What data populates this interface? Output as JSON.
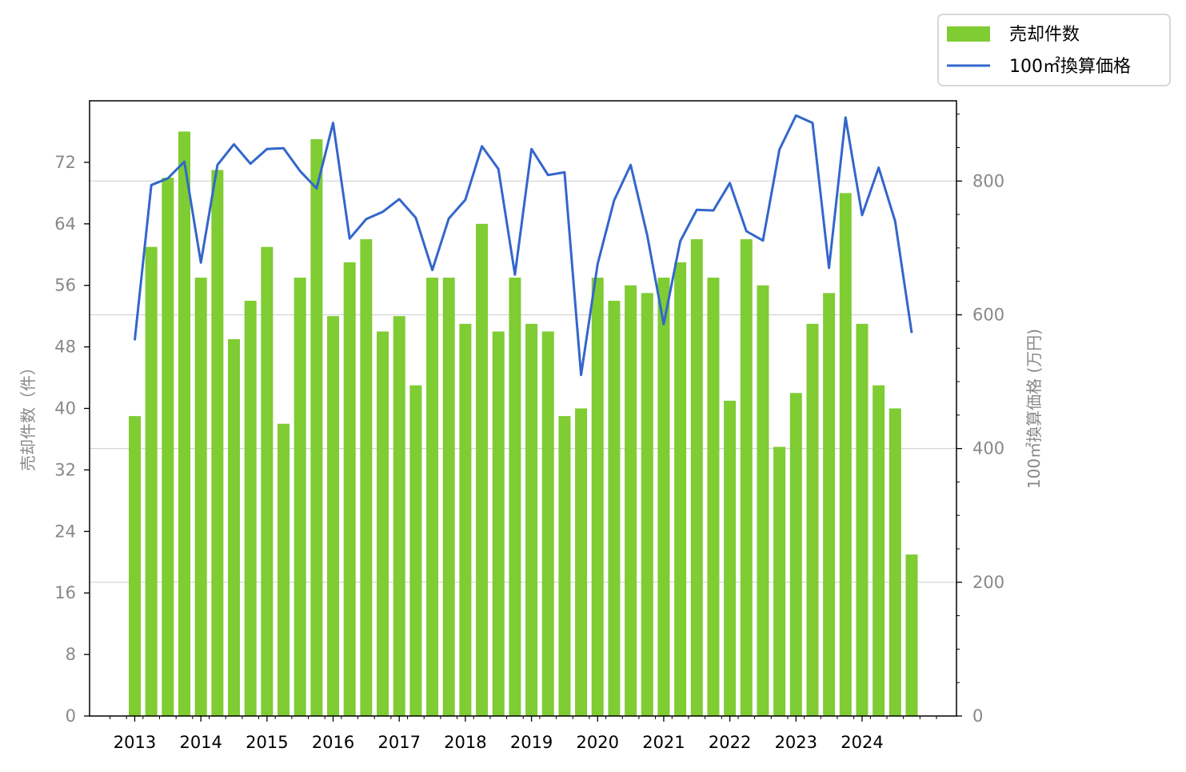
{
  "colors": {
    "bar": "#7fcc33",
    "line": "#3366cc",
    "grid": "#d3d3d3",
    "axis": "#000000",
    "tick_label": "#888888"
  },
  "chart_data": {
    "type": "bar+line",
    "title": "",
    "x": [
      "2013Q1",
      "2013Q2",
      "2013Q3",
      "2013Q4",
      "2014Q1",
      "2014Q2",
      "2014Q3",
      "2014Q4",
      "2015Q1",
      "2015Q2",
      "2015Q3",
      "2015Q4",
      "2016Q1",
      "2016Q2",
      "2016Q3",
      "2016Q4",
      "2017Q1",
      "2017Q2",
      "2017Q3",
      "2017Q4",
      "2018Q1",
      "2018Q2",
      "2018Q3",
      "2018Q4",
      "2019Q1",
      "2019Q2",
      "2019Q3",
      "2019Q4",
      "2020Q1",
      "2020Q2",
      "2020Q3",
      "2020Q4",
      "2021Q1",
      "2021Q2",
      "2021Q3",
      "2021Q4",
      "2022Q1",
      "2022Q2",
      "2022Q3",
      "2022Q4",
      "2023Q1",
      "2023Q2",
      "2023Q3",
      "2023Q4",
      "2024Q1",
      "2024Q2",
      "2024Q3",
      "2024Q4"
    ],
    "year_labels": [
      "2013",
      "2014",
      "2015",
      "2016",
      "2017",
      "2018",
      "2019",
      "2020",
      "2021",
      "2022",
      "2023",
      "2024"
    ],
    "series": [
      {
        "name": "売却件数",
        "type": "bar",
        "axis": "left",
        "values": [
          39,
          61,
          70,
          76,
          57,
          71,
          49,
          54,
          61,
          38,
          57,
          75,
          52,
          59,
          62,
          50,
          52,
          43,
          57,
          57,
          51,
          64,
          50,
          57,
          51,
          50,
          39,
          40,
          57,
          54,
          56,
          55,
          57,
          59,
          62,
          57,
          41,
          62,
          56,
          35,
          42,
          51,
          55,
          68,
          51,
          43,
          40,
          21
        ]
      },
      {
        "name": "100㎡換算価格",
        "type": "line",
        "axis": "right",
        "values": [
          562,
          794,
          804,
          829,
          678,
          824,
          855,
          826,
          848,
          849,
          815,
          789,
          887,
          714,
          743,
          754,
          773,
          745,
          667,
          744,
          772,
          852,
          818,
          660,
          848,
          809,
          813,
          510,
          676,
          771,
          824,
          719,
          586,
          710,
          757,
          756,
          797,
          725,
          711,
          847,
          898,
          887,
          670,
          895,
          749,
          820,
          740,
          573
        ]
      }
    ],
    "y_left": {
      "label": "売却件数（件）",
      "min": 0,
      "max": 80,
      "ticks": [
        0,
        8,
        16,
        24,
        32,
        40,
        48,
        56,
        64,
        72
      ]
    },
    "y_right": {
      "label": "100㎡換算価格 (万円)",
      "min": 0,
      "max": 920,
      "ticks": [
        0,
        200,
        400,
        600,
        800
      ]
    },
    "grid": "horizontal, right axis",
    "legend_position": "top-right, outside plot"
  }
}
